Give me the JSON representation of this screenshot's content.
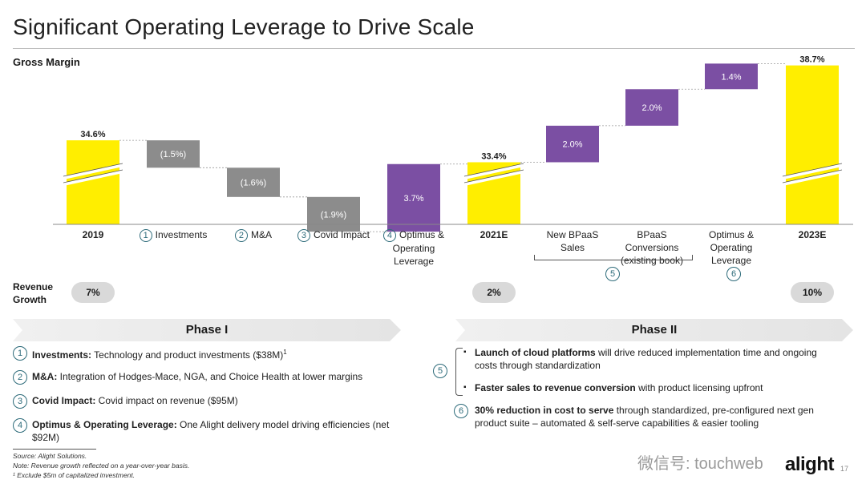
{
  "title": "Significant Operating Leverage to Drive Scale",
  "chart_subtitle": "Gross Margin",
  "chart_data": {
    "type": "bar",
    "categories": [
      "2019",
      "Investments",
      "M&A",
      "Covid Impact",
      "Optimus & Operating Leverage",
      "2021E",
      "New BPaaS Sales",
      "BPaaS Conversions (existing book)",
      "Optimus & Operating Leverage",
      "2023E"
    ],
    "values": [
      34.6,
      -1.5,
      -1.6,
      -1.9,
      3.7,
      33.4,
      2.0,
      2.0,
      1.4,
      38.7
    ],
    "data_labels": [
      "34.6%",
      "(1.5%)",
      "(1.6%)",
      "(1.9%)",
      "3.7%",
      "33.4%",
      "2.0%",
      "2.0%",
      "1.4%",
      "38.7%"
    ],
    "bar_kind": [
      "total",
      "negative",
      "negative",
      "negative",
      "positive",
      "total",
      "positive",
      "positive",
      "positive",
      "total"
    ],
    "ylim": [
      30,
      40
    ],
    "grid": false,
    "axis_break": true,
    "colors": {
      "total": "#ffee00",
      "negative": "#8c8c8c",
      "positive": "#7b4fa3"
    }
  },
  "x_labels": [
    {
      "text": "2019",
      "bold": true
    },
    {
      "num": "1",
      "text": "Investments"
    },
    {
      "num": "2",
      "text": "M&A"
    },
    {
      "num": "3",
      "text": "Covid Impact"
    },
    {
      "num": "4",
      "text": "Optimus & Operating Leverage"
    },
    {
      "text": "2021E",
      "bold": true
    },
    {
      "text": "New BPaaS Sales"
    },
    {
      "text": "BPaaS Conversions (existing book)"
    },
    {
      "text": "Optimus & Operating Leverage"
    },
    {
      "text": "2023E",
      "bold": true
    }
  ],
  "bracket_num": "5",
  "opt_num": "6",
  "revenue_growth": {
    "label": "Revenue Growth",
    "values": [
      "7%",
      "2%",
      "10%"
    ]
  },
  "phase1": {
    "title": "Phase I",
    "items": [
      {
        "num": "1",
        "bold": "Investments:",
        "text": " Technology and product investments ($38M)",
        "sup": "1"
      },
      {
        "num": "2",
        "bold": "M&A:",
        "text": " Integration of Hodges-Mace, NGA, and Choice Health at lower margins"
      },
      {
        "num": "3",
        "bold": "Covid Impact:",
        "text": " Covid impact on revenue ($95M)"
      },
      {
        "num": "4",
        "bold": "Optimus & Operating Leverage:",
        "text": " One Alight delivery model driving efficiencies (net $92M)"
      }
    ]
  },
  "phase2": {
    "title": "Phase II",
    "group_num": "5",
    "bullets": [
      {
        "bold": "Launch of cloud platforms",
        "text": " will drive reduced implementation time and ongoing costs through standardization"
      },
      {
        "bold": "Faster sales to revenue conversion",
        "text": " with product licensing upfront"
      }
    ],
    "item6": {
      "num": "6",
      "bold": "30% reduction in cost to serve",
      "text": " through standardized, pre-configured next gen product suite – automated & self-serve capabilities & easier tooling"
    }
  },
  "footnotes": [
    "Source: Alight Solutions.",
    "Note: Revenue growth reflected on a year-over-year basis.",
    "¹ Exclude $5m of capitalized investment."
  ],
  "logo": "alight",
  "watermark": "微信号: touchweb",
  "page_number": "17"
}
